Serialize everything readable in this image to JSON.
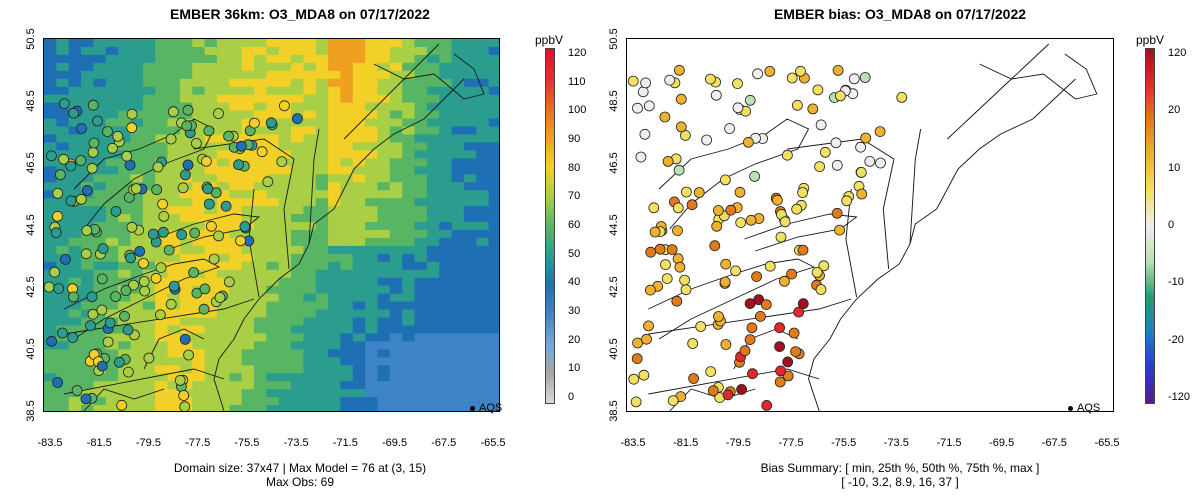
{
  "left": {
    "title": "EMBER 36km: O3_MDA8 on 07/17/2022",
    "yticks": [
      "38.5",
      "40.5",
      "42.5",
      "44.5",
      "46.5",
      "48.5",
      "50.5"
    ],
    "xticks": [
      "-83.5",
      "-81.5",
      "-79.5",
      "-77.5",
      "-75.5",
      "-73.5",
      "-71.5",
      "-69.5",
      "-67.5",
      "-65.5"
    ],
    "summary_line1": "Domain size: 37x47 | Max Model = 76 at (3, 15)",
    "summary_line2": "Max Obs: 69",
    "legend_label": "AQS",
    "colorbar": {
      "unit": "ppbV",
      "labels": [
        "120",
        "110",
        "100",
        "90",
        "80",
        "70",
        "60",
        "50",
        "40",
        "30",
        "20",
        "10",
        "0"
      ]
    }
  },
  "right": {
    "title": "EMBER bias: O3_MDA8 on 07/17/2022",
    "yticks": [
      "38.5",
      "40.5",
      "42.5",
      "44.5",
      "46.5",
      "48.5",
      "50.5"
    ],
    "xticks": [
      "-83.5",
      "-81.5",
      "-79.5",
      "-77.5",
      "-75.5",
      "-73.5",
      "-71.5",
      "-69.5",
      "-67.5",
      "-65.5"
    ],
    "summary_line1": "Bias Summary: [ min, 25th %, 50th %, 75th %, max ]",
    "summary_line2": "[ -10,  3.2,  8.9,  16,  37 ]",
    "legend_label": "AQS",
    "colorbar": {
      "unit": "ppbV",
      "labels": [
        "120",
        "20",
        "10",
        "0",
        "-10",
        "-20",
        "-120"
      ]
    }
  },
  "colors": {
    "ozone_scale": [
      "#d9d9d9",
      "#a6a6a6",
      "#6fa8dc",
      "#3d85c6",
      "#1f6fb4",
      "#2a9d8f",
      "#57b563",
      "#a8cf45",
      "#f2d028",
      "#f0a020",
      "#e86d1f",
      "#e23030",
      "#e0102a"
    ],
    "bias_scale": [
      "#5a1a8c",
      "#2a3ad0",
      "#1f7fc2",
      "#1f9e6e",
      "#b9e0b0",
      "#eeeeee",
      "#f2e060",
      "#f0b030",
      "#e07a1a",
      "#e02a2a",
      "#a01020"
    ],
    "boundary": "#1a1a1a"
  }
}
